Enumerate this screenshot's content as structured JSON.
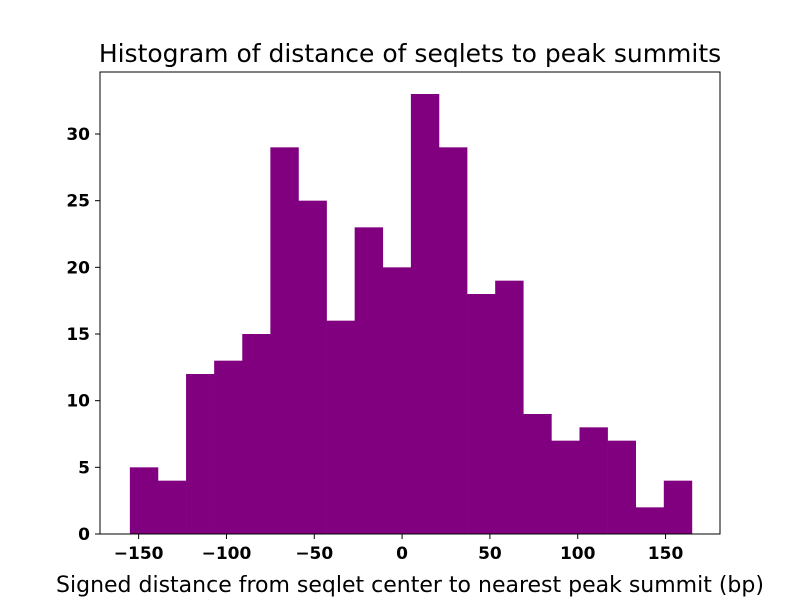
{
  "chart_data": {
    "type": "bar",
    "title": "Histogram of distance of seqlets to peak summits",
    "xlabel": "Signed distance from seqlet center to nearest peak summit (bp)",
    "ylabel": "",
    "bin_edges": [
      -155,
      -139,
      -123,
      -107,
      -91,
      -75,
      -59,
      -43,
      -27,
      -11,
      5,
      21,
      37,
      53,
      69,
      85,
      101,
      117,
      133,
      149,
      165
    ],
    "counts": [
      5,
      4,
      12,
      13,
      15,
      29,
      25,
      16,
      23,
      20,
      33,
      29,
      18,
      19,
      9,
      7,
      8,
      7,
      2,
      4
    ],
    "bar_color": "#800080",
    "xlim": [
      -172,
      181
    ],
    "ylim": [
      0,
      34.65
    ],
    "xticks": [
      -150,
      -100,
      -50,
      0,
      50,
      100,
      150
    ],
    "xtick_labels": [
      "−150",
      "−100",
      "−50",
      "0",
      "50",
      "100",
      "150"
    ],
    "yticks": [
      0,
      5,
      10,
      15,
      20,
      25,
      30
    ],
    "ytick_labels": [
      "0",
      "5",
      "10",
      "15",
      "20",
      "25",
      "30"
    ],
    "grid": false,
    "legend": "none"
  }
}
